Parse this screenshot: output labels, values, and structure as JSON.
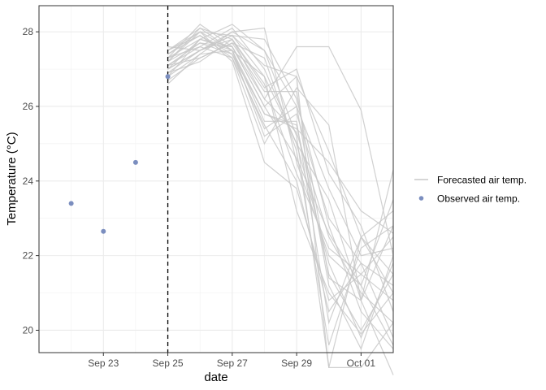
{
  "chart_data": {
    "type": "line",
    "xlabel": "date",
    "ylabel": "Temperature (°C)",
    "x_tick_labels": [
      "Sep 23",
      "Sep 25",
      "Sep 27",
      "Sep 29",
      "Oct 01"
    ],
    "x_ticks": [
      "2023-09-23",
      "2023-09-25",
      "2023-09-27",
      "2023-09-29",
      "2023-10-01"
    ],
    "xlim": [
      "2023-09-21",
      "2023-10-02"
    ],
    "y_ticks": [
      20,
      22,
      24,
      26,
      28
    ],
    "ylim": [
      19.4,
      28.7
    ],
    "grid": true,
    "legend_position": "right",
    "forecast_start": "2023-09-25",
    "x_dates": [
      "2023-09-25",
      "2023-09-26",
      "2023-09-27",
      "2023-09-28",
      "2023-09-29",
      "2023-09-30",
      "2023-10-01",
      "2023-10-02"
    ],
    "series": [
      {
        "name": "Forecasted air temp.",
        "kind": "line",
        "color": "#c8c8c8",
        "ensemble": [
          [
            27.2,
            28.1,
            27.8,
            26.2,
            25.3,
            22.5,
            21.0,
            20.2
          ],
          [
            27.0,
            27.5,
            27.9,
            27.1,
            26.8,
            24.8,
            22.5,
            21.5
          ],
          [
            26.8,
            27.8,
            28.2,
            27.5,
            26.0,
            21.2,
            19.5,
            22.0
          ],
          [
            27.3,
            27.6,
            27.3,
            25.5,
            24.0,
            20.5,
            21.8,
            19.8
          ],
          [
            27.5,
            28.0,
            27.5,
            26.8,
            25.0,
            23.5,
            20.8,
            22.8
          ],
          [
            27.1,
            27.7,
            27.6,
            26.0,
            26.8,
            19.0,
            22.5,
            21.0
          ],
          [
            26.6,
            27.4,
            28.0,
            28.1,
            24.5,
            22.0,
            21.2,
            23.5
          ],
          [
            27.4,
            27.9,
            27.4,
            25.8,
            25.5,
            21.5,
            20.0,
            21.5
          ],
          [
            26.9,
            27.2,
            27.8,
            26.5,
            27.0,
            24.2,
            22.8,
            20.5
          ],
          [
            27.2,
            28.0,
            27.2,
            24.5,
            23.8,
            20.8,
            21.5,
            22.5
          ],
          [
            27.6,
            27.5,
            27.9,
            27.8,
            26.2,
            22.8,
            20.5,
            19.5
          ],
          [
            27.0,
            27.8,
            27.5,
            25.2,
            25.8,
            23.0,
            21.8,
            21.2
          ],
          [
            26.7,
            27.3,
            27.7,
            27.3,
            24.8,
            19.6,
            22.2,
            22.8
          ],
          [
            27.3,
            28.2,
            27.6,
            26.2,
            27.6,
            27.6,
            25.9,
            22.0
          ],
          [
            27.1,
            27.6,
            28.1,
            27.0,
            25.0,
            21.8,
            19.8,
            21.8
          ],
          [
            27.5,
            27.9,
            27.3,
            25.0,
            26.5,
            25.5,
            20.8,
            24.3
          ],
          [
            27.0,
            27.5,
            27.8,
            26.6,
            24.2,
            22.2,
            21.5,
            20.8
          ],
          [
            26.8,
            27.4,
            27.5,
            25.6,
            25.6,
            20.2,
            22.5,
            23.2
          ],
          [
            27.4,
            28.0,
            27.9,
            26.8,
            23.2,
            21.0,
            19.9,
            21.0
          ],
          [
            27.2,
            27.7,
            27.4,
            25.4,
            26.0,
            23.8,
            22.0,
            22.2
          ],
          [
            26.9,
            27.5,
            28.0,
            27.5,
            25.2,
            19.0,
            19.0,
            20.2
          ],
          [
            27.3,
            27.8,
            27.6,
            26.0,
            24.6,
            22.6,
            21.2,
            19.6
          ],
          [
            27.1,
            27.3,
            27.7,
            26.4,
            26.4,
            21.4,
            20.8,
            18.8
          ],
          [
            27.5,
            28.1,
            27.5,
            25.8,
            25.4,
            24.5,
            23.2,
            22.6
          ]
        ]
      },
      {
        "name": "Observed air temp.",
        "kind": "point",
        "color": "#7b8ebf",
        "points": [
          {
            "x": "2023-09-22",
            "y": 23.4
          },
          {
            "x": "2023-09-23",
            "y": 22.65
          },
          {
            "x": "2023-09-24",
            "y": 24.5
          },
          {
            "x": "2023-09-25",
            "y": 26.8
          }
        ]
      }
    ]
  }
}
